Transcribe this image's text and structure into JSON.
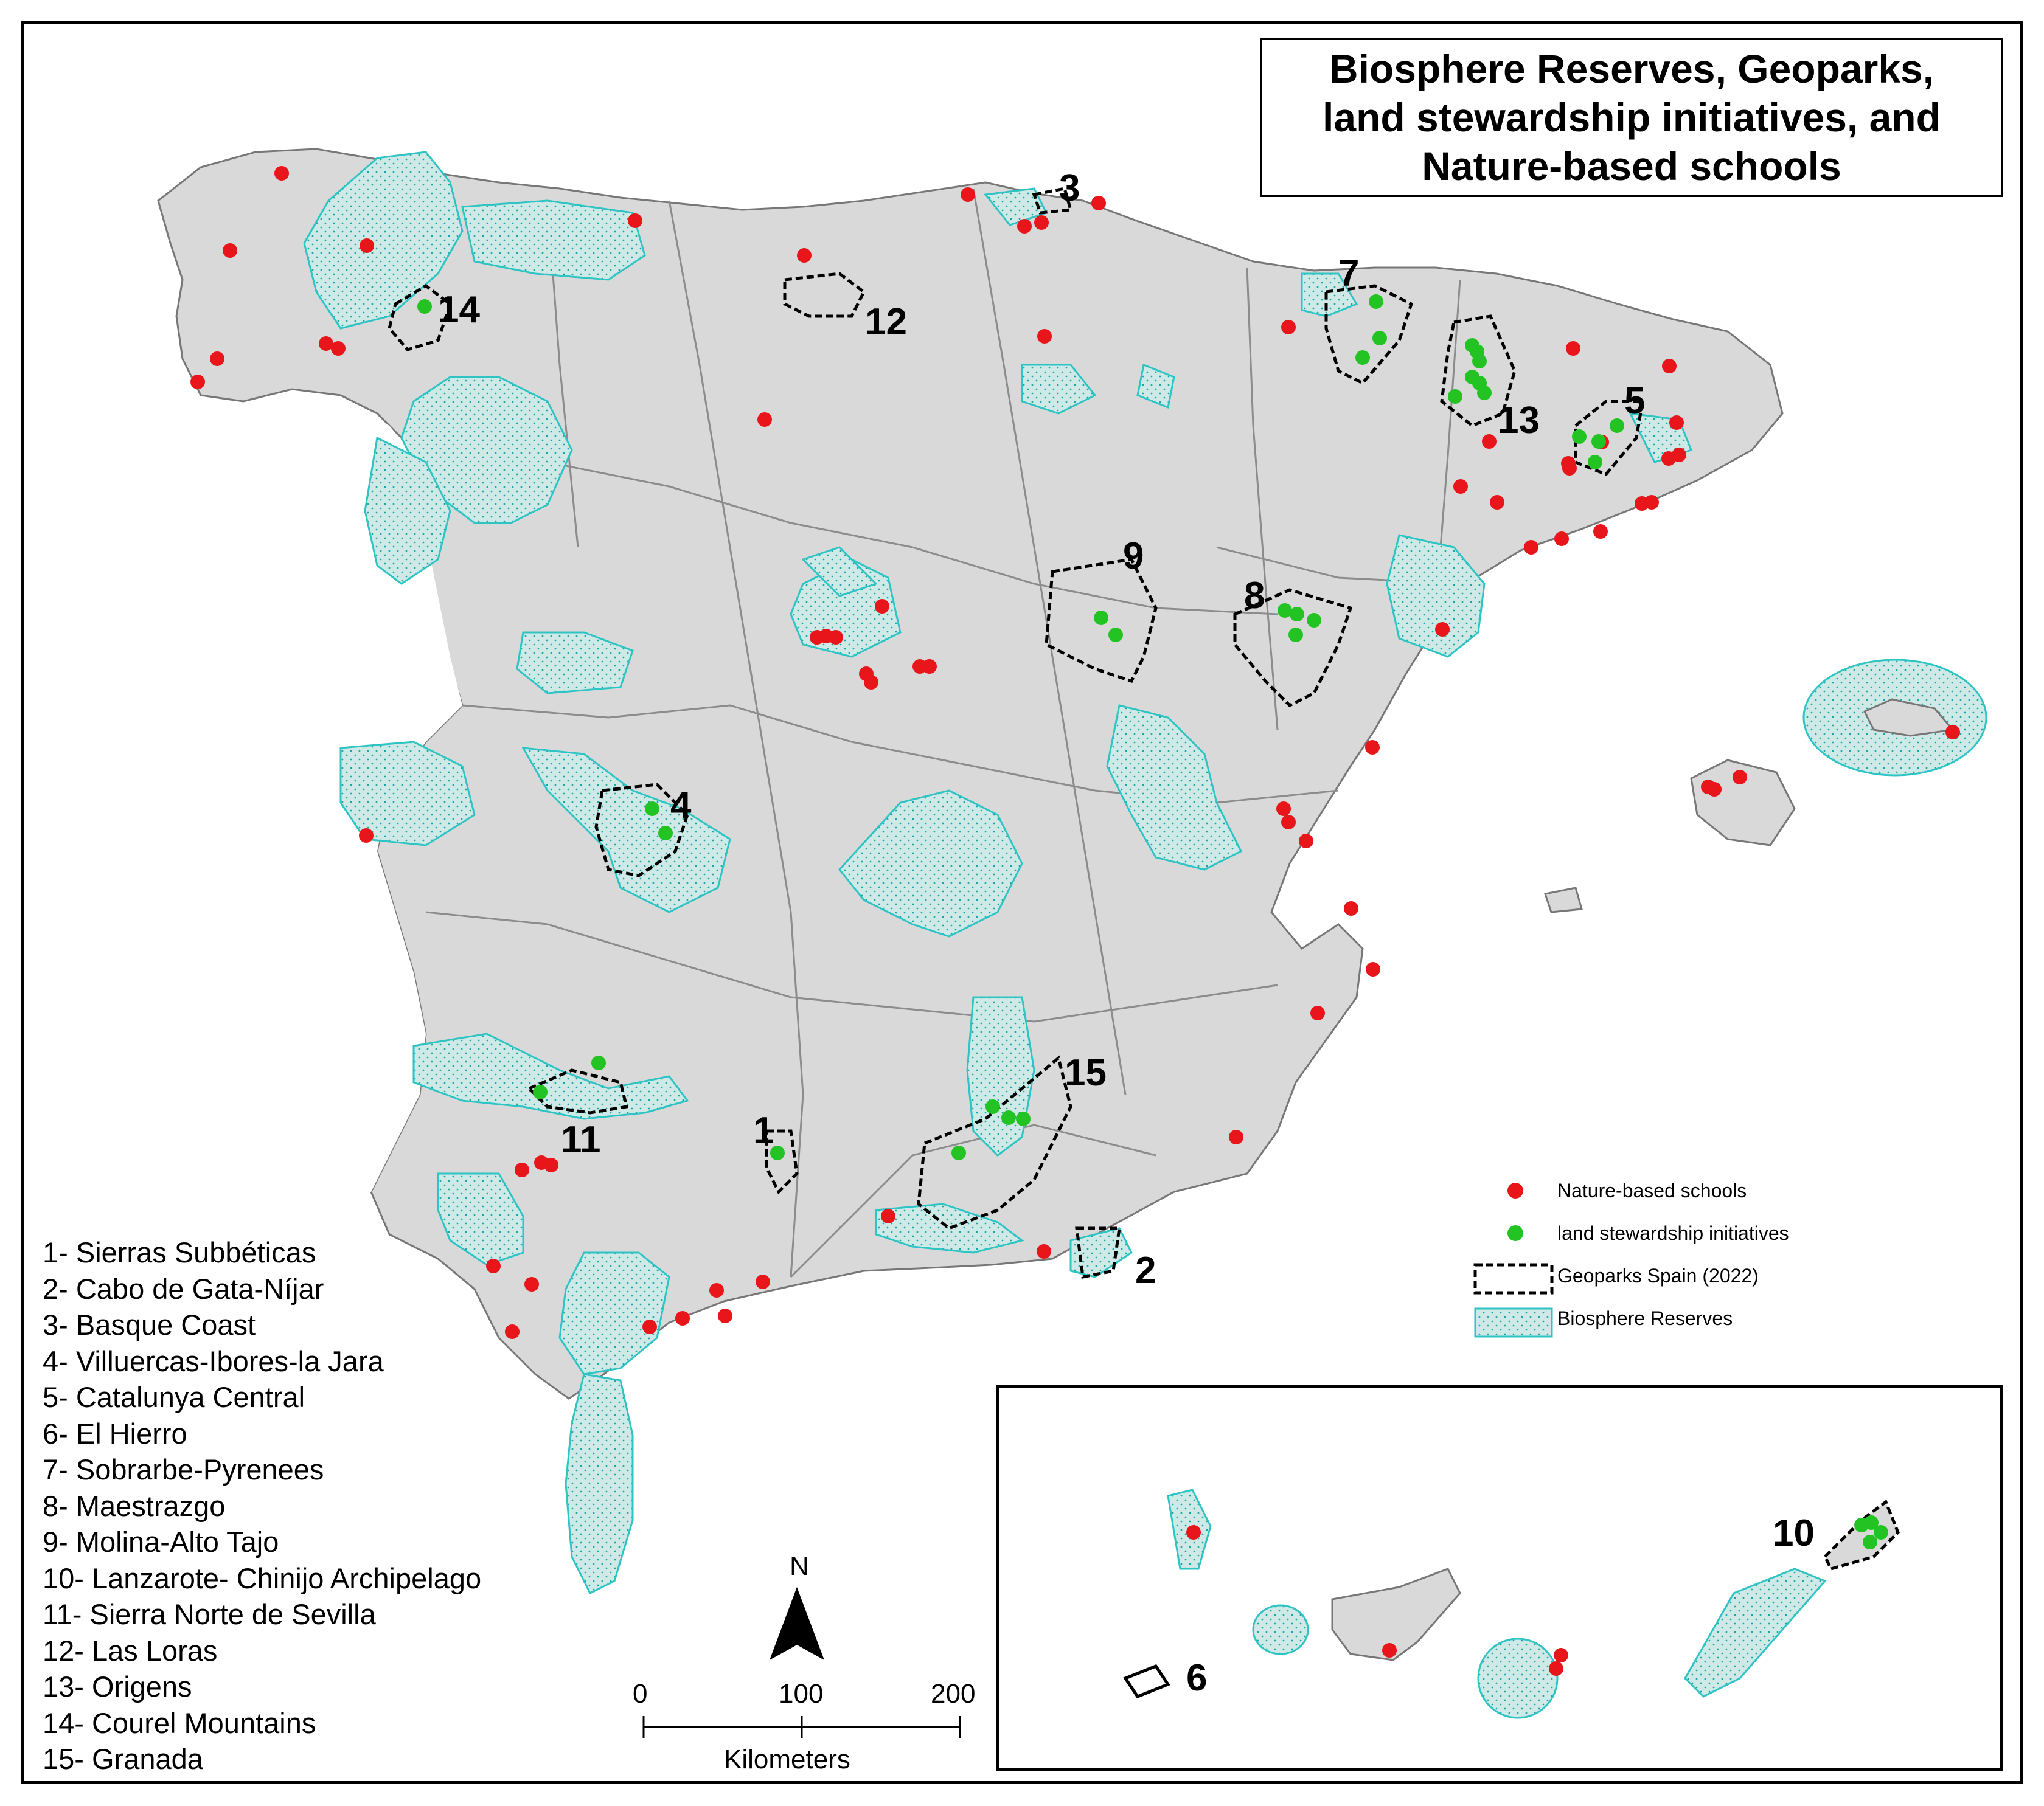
{
  "title": {
    "line1": "Biosphere Reserves, Geoparks,",
    "line2": "land stewardship initiatives, and",
    "line3": "Nature-based schools"
  },
  "legend": {
    "schools": "Nature-based schools",
    "stewardship": "land stewardship initiatives",
    "geoparks": "Geoparks Spain (2022)",
    "biosphere": "Biosphere Reserves"
  },
  "geoparks": [
    "1- Sierras Subbéticas",
    "2- Cabo de Gata-Níjar",
    "3- Basque Coast",
    "4- Villuercas-Ibores-la Jara",
    "5- Catalunya Central",
    "6- El Hierro",
    "7- Sobrarbe-Pyrenees",
    "8- Maestrazgo",
    "9- Molina-Alto Tajo",
    "10- Lanzarote- Chinijo Archipelago",
    "11- Sierra Norte de Sevilla",
    "12- Las Loras",
    "13- Origens",
    "14- Courel Mountains",
    "15- Granada"
  ],
  "map_numbers": [
    "1",
    "2",
    "3",
    "4",
    "5",
    "6",
    "7",
    "8",
    "9",
    "10",
    "11",
    "12",
    "13",
    "14",
    "15"
  ],
  "scale": {
    "zero": "0",
    "mid": "100",
    "max": "200",
    "unit": "Kilometers"
  },
  "north": "N",
  "colors": {
    "land": "#d9d9d9",
    "land_border": "#9a9a9a",
    "biosphere": "#2ec4c4",
    "schools": "#e8151b",
    "stewardship": "#22c322",
    "geopark_outline": "#000000"
  }
}
